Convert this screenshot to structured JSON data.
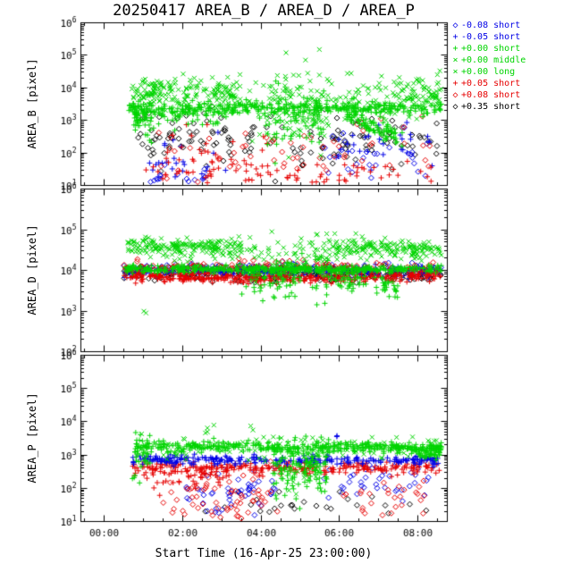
{
  "title": "20250417 AREA_B / AREA_D / AREA_P",
  "x_axis": {
    "title": "Start Time (16-Apr-25 23:00:00)",
    "tick_hours": [
      0,
      2,
      4,
      6,
      8
    ],
    "tick_labels": [
      "00:00",
      "02:00",
      "04:00",
      "06:00",
      "08:00"
    ],
    "range_hours": [
      -0.6,
      8.75
    ]
  },
  "colors": {
    "blue": "#0000e6",
    "green": "#00d400",
    "red": "#e60000",
    "black": "#000000"
  },
  "legend": {
    "items": [
      {
        "marker": "diamond",
        "color": "blue",
        "label": "-0.08 short"
      },
      {
        "marker": "plus",
        "color": "blue",
        "label": "-0.05 short"
      },
      {
        "marker": "plus",
        "color": "green",
        "label": "+0.00 short"
      },
      {
        "marker": "cross",
        "color": "green",
        "label": "+0.00 middle"
      },
      {
        "marker": "cross",
        "color": "green",
        "label": "+0.00 long"
      },
      {
        "marker": "plus",
        "color": "red",
        "label": "+0.05 short"
      },
      {
        "marker": "diamond",
        "color": "red",
        "label": "+0.08 short"
      },
      {
        "marker": "diamond",
        "color": "black",
        "label": "+0.35 short"
      }
    ]
  },
  "chart_data": {
    "type": "scatter",
    "log_y": true,
    "grid": false,
    "note": "Three stacked log-scale scatter panels; clusters encode [x0_h, x1_h, logy_start, logy_end, logy_spread, n_points]",
    "panels": [
      {
        "name": "AREA_B",
        "ylabel": "AREA_B [pixel]",
        "ylog_range": [
          1,
          6
        ],
        "series": [
          {
            "legend": "+0.35 short",
            "marker": "diamond",
            "color": "black",
            "clusters": [
              [
                0.8,
                3.8,
                2.55,
                2.45,
                0.45,
                70
              ],
              [
                3.8,
                5.8,
                2.3,
                2.2,
                0.5,
                25
              ],
              [
                5.8,
                8.5,
                2.3,
                2.4,
                0.4,
                55
              ]
            ]
          },
          {
            "legend": "-0.08 short",
            "marker": "diamond",
            "color": "blue",
            "clusters": [
              [
                1.0,
                2.6,
                1.15,
                1.2,
                0.2,
                25
              ],
              [
                5.5,
                8.3,
                1.9,
                2.0,
                0.45,
                30
              ]
            ]
          },
          {
            "legend": "-0.05 short",
            "marker": "plus",
            "color": "blue",
            "clusters": [
              [
                1.0,
                3.2,
                1.5,
                1.6,
                0.4,
                25
              ],
              [
                5.8,
                8.4,
                2.3,
                2.3,
                0.4,
                30
              ]
            ]
          },
          {
            "legend": "+0.05 short",
            "marker": "plus",
            "color": "red",
            "clusters": [
              [
                1.0,
                8.5,
                1.25,
                1.3,
                0.25,
                80
              ],
              [
                1.5,
                4.2,
                2.0,
                1.9,
                0.4,
                40
              ]
            ]
          },
          {
            "legend": "+0.08 short",
            "marker": "diamond",
            "color": "red",
            "clusters": [
              [
                1.2,
                8.5,
                2.1,
                2.2,
                0.5,
                60
              ]
            ]
          },
          {
            "legend": "+0.00 long",
            "marker": "cross",
            "color": "green",
            "clusters": [
              [
                0.9,
                3.3,
                3.95,
                3.9,
                0.15,
                60
              ],
              [
                4.2,
                5.6,
                3.5,
                3.5,
                0.6,
                40
              ],
              [
                7.7,
                8.6,
                3.9,
                3.9,
                0.2,
                30
              ]
            ]
          },
          {
            "legend": "+0.00 middle",
            "marker": "cross",
            "color": "green",
            "clusters": [
              [
                0.7,
                3.5,
                3.85,
                3.8,
                0.25,
                120
              ],
              [
                3.6,
                5.8,
                3.4,
                3.4,
                0.6,
                80
              ],
              [
                5.8,
                8.6,
                3.65,
                3.75,
                0.3,
                100
              ]
            ]
          },
          {
            "legend": "+0.00 short",
            "marker": "plus",
            "color": "green",
            "clusters": [
              [
                0.6,
                8.6,
                3.35,
                3.35,
                0.12,
                380
              ],
              [
                0.6,
                1.3,
                2.9,
                3.2,
                0.4,
                30
              ],
              [
                6.2,
                7.6,
                3.15,
                2.4,
                0.15,
                80
              ],
              [
                4.0,
                5.6,
                3.0,
                3.0,
                0.5,
                60
              ],
              [
                0.8,
                3.0,
                3.1,
                3.15,
                0.2,
                60
              ]
            ]
          }
        ]
      },
      {
        "name": "AREA_D",
        "ylabel": "AREA_D [pixel]",
        "ylog_range": [
          2,
          6
        ],
        "series": [
          {
            "legend": "+0.35 short",
            "marker": "diamond",
            "color": "black",
            "clusters": [
              [
                0.5,
                8.6,
                3.93,
                3.9,
                0.1,
                220
              ]
            ]
          },
          {
            "legend": "-0.08 short",
            "marker": "diamond",
            "color": "blue",
            "clusters": [
              [
                0.5,
                8.6,
                4.03,
                4.02,
                0.07,
                160
              ]
            ]
          },
          {
            "legend": "-0.05 short",
            "marker": "plus",
            "color": "blue",
            "clusters": [
              [
                0.5,
                8.6,
                3.97,
                3.96,
                0.07,
                160
              ]
            ]
          },
          {
            "legend": "+0.05 short",
            "marker": "plus",
            "color": "red",
            "clusters": [
              [
                0.5,
                4.0,
                3.86,
                3.78,
                0.06,
                180
              ],
              [
                4.0,
                8.6,
                3.79,
                3.85,
                0.06,
                180
              ]
            ]
          },
          {
            "legend": "+0.08 short",
            "marker": "diamond",
            "color": "red",
            "clusters": [
              [
                0.5,
                8.6,
                4.09,
                4.07,
                0.08,
                140
              ]
            ]
          },
          {
            "legend": "+0.00 long",
            "marker": "cross",
            "color": "green",
            "clusters": [
              [
                0.6,
                8.6,
                4.5,
                4.48,
                0.15,
                90
              ],
              [
                1.0,
                1.1,
                3.0,
                3.0,
                0.03,
                2
              ]
            ]
          },
          {
            "legend": "+0.00 middle",
            "marker": "cross",
            "color": "green",
            "clusters": [
              [
                0.6,
                3.5,
                4.6,
                4.58,
                0.1,
                160
              ],
              [
                5.9,
                8.6,
                4.55,
                4.5,
                0.1,
                140
              ],
              [
                3.5,
                5.9,
                4.3,
                4.3,
                0.35,
                60
              ]
            ]
          },
          {
            "legend": "+0.00 short",
            "marker": "plus",
            "color": "green",
            "clusters": [
              [
                0.5,
                8.6,
                4.03,
                4.02,
                0.05,
                420
              ],
              [
                3.5,
                5.8,
                3.85,
                3.8,
                0.3,
                80
              ],
              [
                5.9,
                7.5,
                3.78,
                3.55,
                0.12,
                60
              ]
            ]
          }
        ]
      },
      {
        "name": "AREA_P",
        "ylabel": "AREA_P [pixel]",
        "ylog_range": [
          1,
          6
        ],
        "series": [
          {
            "legend": "+0.35 short",
            "marker": "diamond",
            "color": "black",
            "clusters": [
              [
                2.5,
                8.5,
                1.4,
                1.45,
                0.3,
                30
              ]
            ]
          },
          {
            "legend": "-0.08 short",
            "marker": "diamond",
            "color": "blue",
            "clusters": [
              [
                2.0,
                4.4,
                1.8,
                2.0,
                0.45,
                50
              ],
              [
                5.6,
                8.4,
                2.2,
                2.25,
                0.3,
                40
              ]
            ]
          },
          {
            "legend": "+0.08 short",
            "marker": "diamond",
            "color": "red",
            "clusters": [
              [
                1.5,
                4.5,
                1.5,
                1.9,
                0.45,
                70
              ],
              [
                5.6,
                8.3,
                1.7,
                1.7,
                0.4,
                30
              ]
            ]
          },
          {
            "legend": "+0.05 short",
            "marker": "plus",
            "color": "red",
            "clusters": [
              [
                0.7,
                8.6,
                2.62,
                2.6,
                0.09,
                260
              ],
              [
                1.0,
                3.2,
                2.3,
                2.35,
                0.2,
                40
              ]
            ]
          },
          {
            "legend": "-0.05 short",
            "marker": "plus",
            "color": "blue",
            "clusters": [
              [
                0.7,
                8.6,
                2.86,
                2.84,
                0.07,
                260
              ],
              [
                5.85,
                5.95,
                3.6,
                3.6,
                0.02,
                2
              ]
            ]
          },
          {
            "legend": "+0.00 long",
            "marker": "cross",
            "color": "green",
            "clusters": [
              [
                0.8,
                8.6,
                3.3,
                3.25,
                0.2,
                50
              ]
            ]
          },
          {
            "legend": "+0.00 middle",
            "marker": "cross",
            "color": "green",
            "clusters": [
              [
                0.8,
                8.6,
                3.32,
                3.28,
                0.25,
                60
              ],
              [
                4.3,
                5.6,
                2.6,
                2.6,
                0.4,
                30
              ]
            ]
          },
          {
            "legend": "+0.00 short",
            "marker": "plus",
            "color": "green",
            "clusters": [
              [
                0.7,
                8.6,
                3.26,
                3.22,
                0.09,
                380
              ],
              [
                0.7,
                1.2,
                2.9,
                3.1,
                0.3,
                30
              ],
              [
                4.3,
                5.7,
                2.6,
                2.7,
                0.45,
                120
              ],
              [
                7.9,
                8.6,
                3.1,
                3.1,
                0.12,
                50
              ]
            ]
          }
        ]
      }
    ]
  }
}
